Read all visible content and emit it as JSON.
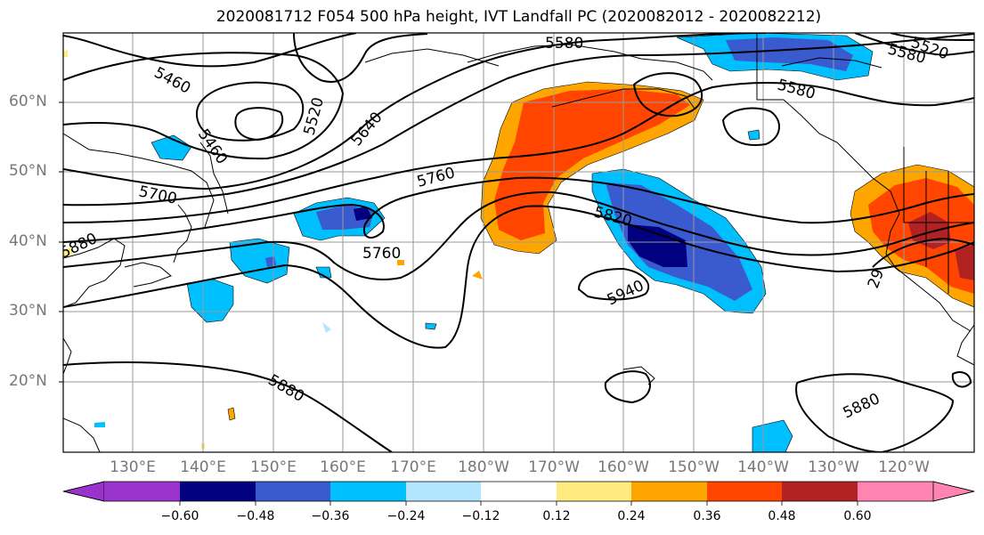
{
  "title": "2020081712 F054 500 hPa height, IVT Landfall PC (2020082012 - 2020082212)",
  "map": {
    "projection": "cylindrical",
    "lon_range": [
      120,
      250
    ],
    "lat_range": [
      10,
      70
    ],
    "lat_labels": [
      "60°N",
      "50°N",
      "40°N",
      "30°N",
      "20°N"
    ],
    "lat_values": [
      60,
      50,
      40,
      30,
      20
    ],
    "lon_labels": [
      "130°E",
      "140°E",
      "150°E",
      "160°E",
      "170°E",
      "180°W",
      "170°W",
      "160°W",
      "150°W",
      "140°W",
      "130°W",
      "120°W"
    ],
    "lon_values": [
      130,
      140,
      150,
      160,
      170,
      180,
      190,
      200,
      210,
      220,
      230,
      240
    ],
    "grid": true,
    "coastlines": true,
    "contour_field": "500 hPa height",
    "contour_labels": [
      "5460",
      "5460",
      "5520",
      "5520",
      "5580",
      "5580",
      "5580",
      "5640",
      "5700",
      "5760",
      "5760",
      "5820",
      "5880",
      "5880",
      "5880",
      "5940",
      "29"
    ],
    "shaded_field": "IVT Landfall PC"
  },
  "colorbar": {
    "orientation": "horizontal",
    "extend": "both",
    "colors": [
      "#9933cc",
      "#000080",
      "#3a5bd0",
      "#00bfff",
      "#b3e5ff",
      "#ffffff",
      "#ffeb80",
      "#ffa500",
      "#ff4500",
      "#b22222",
      "#ff85b0"
    ],
    "tick_labels": [
      "−0.60",
      "−0.48",
      "−0.36",
      "−0.24",
      "−0.12",
      "0.12",
      "0.24",
      "0.36",
      "0.48",
      "0.60"
    ]
  }
}
